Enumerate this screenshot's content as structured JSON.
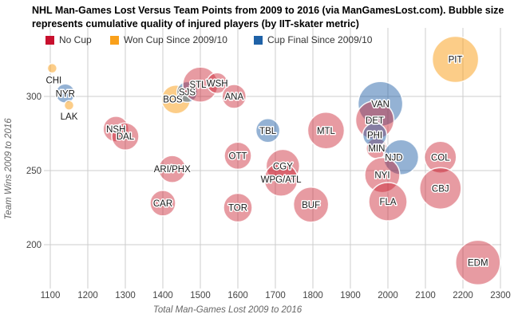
{
  "title": "NHL Man-Games Lost Versus Team Points from 2009 to 2016 (via ManGamesLost.com). Bubble size represents cumulative quality of injured players (by IIT-skater metric)",
  "legend": {
    "items": [
      {
        "id": "no_cup",
        "label": "No Cup",
        "color": "#C8102E",
        "bubble_color": "rgba(201,34,48,0.45)"
      },
      {
        "id": "won_cup",
        "label": "Won Cup Since 2009/10",
        "color": "#F9A01B",
        "bubble_color": "rgba(249,160,27,0.52)"
      },
      {
        "id": "cup_final",
        "label": "Cup Final Since 2009/10",
        "color": "#1F62A7",
        "bubble_color": "rgba(32,94,165,0.48)"
      }
    ]
  },
  "colors": {
    "grid": "#CCCCCC",
    "tick_label": "#444444",
    "axis_title": "#666666",
    "title": "#000000",
    "bubble_label": "#1a1a1a",
    "bubble_label_alt": "#8B2222",
    "bubble_stroke": "rgba(255,255,255,0.9)"
  },
  "chart_data": {
    "type": "scatter",
    "subtype": "bubble",
    "title": "NHL Man-Games Lost Versus Team Points from 2009 to 2016",
    "xlabel": "Total Man-Games Lost 2009 to 2016",
    "ylabel": "Team Wins 2009 to 2016",
    "xlim": [
      1080,
      2310
    ],
    "ylim": [
      170,
      346
    ],
    "x_ticks": [
      1100,
      1200,
      1300,
      1400,
      1500,
      1600,
      1700,
      1800,
      1900,
      2000,
      2100,
      2200,
      2300
    ],
    "y_ticks": [
      200,
      250,
      300
    ],
    "grid": true,
    "legend_position": "top",
    "size_note": "r is rendered bubble radius in px, proportional to cumulative IIT-skater quality of injured players",
    "points": [
      {
        "team": "CHI",
        "x": 1105,
        "y": 319,
        "r": 6,
        "group": "won_cup",
        "label_dx": 2,
        "label_dy": 15
      },
      {
        "team": "NYR",
        "x": 1140,
        "y": 302,
        "r": 12,
        "group": "cup_final"
      },
      {
        "team": "LAK",
        "x": 1150,
        "y": 294,
        "r": 6,
        "group": "won_cup",
        "label_dy": 14
      },
      {
        "team": "NSH",
        "x": 1275,
        "y": 278,
        "r": 16,
        "group": "no_cup"
      },
      {
        "team": "DAL",
        "x": 1300,
        "y": 273,
        "r": 17,
        "group": "no_cup"
      },
      {
        "team": "BOS",
        "x": 1435,
        "y": 298,
        "r": 18,
        "group": "won_cup",
        "label_dx": -4
      },
      {
        "team": "SJS",
        "x": 1465,
        "y": 303,
        "r": 13,
        "group": "cup_final"
      },
      {
        "team": "STL",
        "x": 1500,
        "y": 308,
        "r": 22,
        "group": "no_cup",
        "label_dx": -3
      },
      {
        "team": "WSH",
        "x": 1545,
        "y": 309,
        "r": 13,
        "group": "no_cup"
      },
      {
        "team": "ANA",
        "x": 1590,
        "y": 300,
        "r": 15,
        "group": "no_cup"
      },
      {
        "team": "ARI/PHX",
        "x": 1425,
        "y": 251,
        "r": 17,
        "group": "no_cup"
      },
      {
        "team": "CAR",
        "x": 1400,
        "y": 228,
        "r": 16,
        "group": "no_cup"
      },
      {
        "team": "OTT",
        "x": 1600,
        "y": 260,
        "r": 17,
        "group": "no_cup"
      },
      {
        "team": "TOR",
        "x": 1600,
        "y": 225,
        "r": 18,
        "group": "no_cup"
      },
      {
        "team": "CGY",
        "x": 1720,
        "y": 253,
        "r": 21,
        "group": "no_cup"
      },
      {
        "team": "WPG/ATL",
        "x": 1715,
        "y": 244,
        "r": 21,
        "group": "no_cup"
      },
      {
        "team": "TBL",
        "x": 1680,
        "y": 277,
        "r": 15,
        "group": "cup_final"
      },
      {
        "team": "MTL",
        "x": 1835,
        "y": 277,
        "r": 23,
        "group": "no_cup"
      },
      {
        "team": "BUF",
        "x": 1795,
        "y": 227,
        "r": 22,
        "group": "no_cup"
      },
      {
        "team": "VAN",
        "x": 1980,
        "y": 295,
        "r": 28,
        "group": "cup_final",
        "label_color": "#8B2222"
      },
      {
        "team": "DET",
        "x": 1965,
        "y": 284,
        "r": 24,
        "group": "no_cup"
      },
      {
        "team": "MIN",
        "x": 1970,
        "y": 265,
        "r": 13,
        "group": "no_cup"
      },
      {
        "team": "PHI",
        "x": 1965,
        "y": 274,
        "r": 15,
        "group": "cup_final"
      },
      {
        "team": "NJD",
        "x": 2035,
        "y": 259,
        "r": 22,
        "group": "cup_final",
        "label_color": "#8B2222",
        "label_dx": -9
      },
      {
        "team": "NYI",
        "x": 1985,
        "y": 247,
        "r": 22,
        "group": "no_cup"
      },
      {
        "team": "FLA",
        "x": 2000,
        "y": 229,
        "r": 24,
        "group": "no_cup"
      },
      {
        "team": "COL",
        "x": 2140,
        "y": 259,
        "r": 20,
        "group": "no_cup"
      },
      {
        "team": "CBJ",
        "x": 2140,
        "y": 238,
        "r": 26,
        "group": "no_cup"
      },
      {
        "team": "PIT",
        "x": 2180,
        "y": 325,
        "r": 29,
        "group": "won_cup"
      },
      {
        "team": "EDM",
        "x": 2240,
        "y": 188,
        "r": 28,
        "group": "no_cup"
      }
    ]
  }
}
